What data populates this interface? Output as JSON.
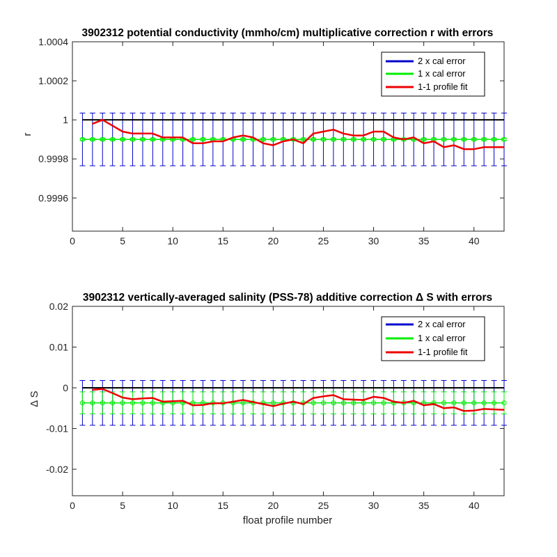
{
  "chart_data": [
    {
      "type": "line",
      "title": "3902312 potential conductivity (mmho/cm) multiplicative correction r with errors",
      "xlabel": "",
      "ylabel": "r",
      "xlim": [
        0,
        43
      ],
      "ylim": [
        0.99943,
        1.0004
      ],
      "xticks": [
        0,
        5,
        10,
        15,
        20,
        25,
        30,
        35,
        40
      ],
      "yticks": [
        0.9996,
        0.9998,
        1,
        1.0002,
        1.0004
      ],
      "ytick_labels": [
        "0.9996",
        "0.9998",
        "1",
        "1.0002",
        "1.0004"
      ],
      "grid": false,
      "legend_position": "top-right",
      "reference_line": 1,
      "error_bars": {
        "center": 0.9999,
        "one_x": 6.3e-06,
        "two_x": 0.000135
      },
      "x": [
        1,
        2,
        3,
        4,
        5,
        6,
        7,
        8,
        9,
        10,
        11,
        12,
        13,
        14,
        15,
        16,
        17,
        18,
        19,
        20,
        21,
        22,
        23,
        24,
        25,
        26,
        27,
        28,
        29,
        30,
        31,
        32,
        33,
        34,
        35,
        36,
        37,
        38,
        39,
        40,
        41,
        42,
        43
      ],
      "series": [
        {
          "name": "2 x cal error",
          "color": "#0000cc"
        },
        {
          "name": "1 x cal error",
          "color": "#00ee00"
        },
        {
          "name": "1-1 profile fit",
          "color": "#ee0000",
          "x": [
            2,
            3,
            4,
            5,
            6,
            7,
            8,
            9,
            10,
            11,
            12,
            13,
            14,
            15,
            16,
            17,
            18,
            19,
            20,
            21,
            22,
            23,
            24,
            25,
            26,
            27,
            28,
            29,
            30,
            31,
            32,
            33,
            34,
            35,
            36,
            37,
            38,
            39,
            40,
            41,
            42,
            43
          ],
          "values": [
            0.99998,
            1.0,
            0.99997,
            0.99994,
            0.99993,
            0.99993,
            0.99993,
            0.99991,
            0.99991,
            0.99991,
            0.99988,
            0.99988,
            0.99989,
            0.99989,
            0.99991,
            0.99992,
            0.99991,
            0.99988,
            0.99987,
            0.99989,
            0.9999,
            0.99988,
            0.99993,
            0.99994,
            0.99995,
            0.99993,
            0.99992,
            0.99992,
            0.99994,
            0.99994,
            0.99991,
            0.9999,
            0.99991,
            0.99988,
            0.99989,
            0.99986,
            0.99987,
            0.99985,
            0.99985,
            0.99986,
            0.99986,
            0.99986
          ]
        }
      ]
    },
    {
      "type": "line",
      "title": "3902312 vertically-averaged salinity (PSS-78) additive correction Δ S with errors",
      "xlabel": "float profile number",
      "ylabel": "Δ S",
      "xlim": [
        0,
        43
      ],
      "ylim": [
        -0.0265,
        0.02
      ],
      "xticks": [
        0,
        5,
        10,
        15,
        20,
        25,
        30,
        35,
        40
      ],
      "yticks": [
        -0.02,
        -0.01,
        0,
        0.01,
        0.02
      ],
      "ytick_labels": [
        "-0.02",
        "-0.01",
        "0",
        "0.01",
        "0.02"
      ],
      "grid": false,
      "legend_position": "top-right",
      "reference_line": 0,
      "error_bars": {
        "center": -0.0037,
        "one_x": 0.0027,
        "two_x": 0.0055
      },
      "x": [
        1,
        2,
        3,
        4,
        5,
        6,
        7,
        8,
        9,
        10,
        11,
        12,
        13,
        14,
        15,
        16,
        17,
        18,
        19,
        20,
        21,
        22,
        23,
        24,
        25,
        26,
        27,
        28,
        29,
        30,
        31,
        32,
        33,
        34,
        35,
        36,
        37,
        38,
        39,
        40,
        41,
        42,
        43
      ],
      "series": [
        {
          "name": "2 x cal error",
          "color": "#0000cc"
        },
        {
          "name": "1 x cal error",
          "color": "#00ee00"
        },
        {
          "name": "1-1 profile fit",
          "color": "#ee0000",
          "x": [
            2,
            3,
            4,
            5,
            6,
            7,
            8,
            9,
            10,
            11,
            12,
            13,
            14,
            15,
            16,
            17,
            18,
            19,
            20,
            21,
            22,
            23,
            24,
            25,
            26,
            27,
            28,
            29,
            30,
            31,
            32,
            33,
            34,
            35,
            36,
            37,
            38,
            39,
            40,
            41,
            42,
            43
          ],
          "values": [
            -0.0005,
            -0.0003,
            -0.0013,
            -0.0024,
            -0.0028,
            -0.0026,
            -0.0025,
            -0.0034,
            -0.0033,
            -0.0032,
            -0.0043,
            -0.0042,
            -0.0038,
            -0.0038,
            -0.0034,
            -0.003,
            -0.0035,
            -0.004,
            -0.0045,
            -0.0039,
            -0.0034,
            -0.004,
            -0.0025,
            -0.0021,
            -0.0018,
            -0.0028,
            -0.0029,
            -0.003,
            -0.0022,
            -0.0025,
            -0.0034,
            -0.0037,
            -0.0032,
            -0.0043,
            -0.004,
            -0.005,
            -0.0048,
            -0.0057,
            -0.0056,
            -0.0052,
            -0.0053,
            -0.0054
          ]
        }
      ]
    }
  ]
}
